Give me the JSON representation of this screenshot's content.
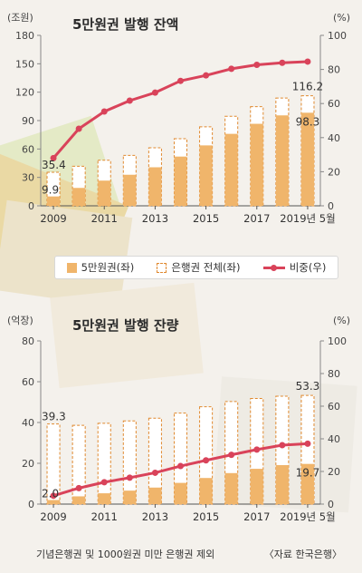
{
  "colors": {
    "bar_5man": "#f0b56b",
    "bar_total_border": "#e0892f",
    "line_ratio": "#d9435a"
  },
  "legend": {
    "item1": "5만원권(좌)",
    "item2": "은행권 전체(좌)",
    "item3": "비중(우)"
  },
  "footnote": "기념은행권 및 1000원권 미만 은행권 제외",
  "source": "〈자료 한국은행〉",
  "chart_data": [
    {
      "type": "bar",
      "title": "5만원권 발행 잔액",
      "left_unit": "(조원)",
      "right_unit": "(%)",
      "x_tick_labels": [
        "2009",
        "2011",
        "2013",
        "2015",
        "2017",
        "2019년 5월"
      ],
      "categories": [
        "2009",
        "2010",
        "2011",
        "2012",
        "2013",
        "2014",
        "2015",
        "2016",
        "2017",
        "2018",
        "2019년 5월"
      ],
      "yticks_left": [
        "0",
        "30",
        "60",
        "90",
        "120",
        "150",
        "180"
      ],
      "yticks_right": [
        "0",
        "20",
        "40",
        "60",
        "80",
        "100"
      ],
      "ylim_left": [
        0,
        180
      ],
      "ylim_right": [
        0,
        100
      ],
      "series": [
        {
          "name": "5만원권(좌)",
          "axis": "left",
          "style": "solid",
          "values": [
            9.9,
            18.9,
            26.6,
            32.8,
            40.7,
            52.0,
            63.8,
            76.0,
            86.6,
            95.5,
            98.3
          ]
        },
        {
          "name": "은행권 전체(좌)",
          "axis": "left",
          "style": "dashed",
          "values": [
            35.4,
            41.8,
            48.1,
            53.2,
            61.3,
            70.9,
            83.4,
            94.5,
            104.7,
            113.8,
            116.2
          ]
        },
        {
          "name": "비중(우)",
          "axis": "right",
          "style": "line",
          "values": [
            28.0,
            45.2,
            55.3,
            61.7,
            66.4,
            73.3,
            76.5,
            80.4,
            82.7,
            83.9,
            84.6
          ]
        }
      ],
      "data_labels": {
        "total_first": "35.4",
        "total_last": "116.2",
        "bar_first": "9.9",
        "bar_last": "98.3"
      }
    },
    {
      "type": "bar",
      "title": "5만원권 발행 잔량",
      "left_unit": "(억장)",
      "right_unit": "(%)",
      "x_tick_labels": [
        "2009",
        "2011",
        "2013",
        "2015",
        "2017",
        "2019년 5월"
      ],
      "categories": [
        "2009",
        "2010",
        "2011",
        "2012",
        "2013",
        "2014",
        "2015",
        "2016",
        "2017",
        "2018",
        "2019년 5월"
      ],
      "yticks_left": [
        "0",
        "20",
        "40",
        "60",
        "80"
      ],
      "yticks_right": [
        "0",
        "20",
        "40",
        "60",
        "80",
        "100"
      ],
      "ylim_left": [
        0,
        80
      ],
      "ylim_right": [
        0,
        100
      ],
      "series": [
        {
          "name": "5만원권(좌)",
          "axis": "left",
          "style": "solid",
          "values": [
            2.0,
            3.8,
            5.3,
            6.6,
            8.1,
            10.4,
            12.8,
            15.2,
            17.3,
            19.1,
            19.7
          ]
        },
        {
          "name": "은행권 전체(좌)",
          "axis": "left",
          "style": "dashed",
          "values": [
            39.3,
            38.6,
            39.6,
            40.8,
            42.1,
            44.6,
            47.7,
            50.3,
            51.8,
            52.9,
            53.3
          ]
        },
        {
          "name": "비중(우)",
          "axis": "right",
          "style": "line",
          "values": [
            5.1,
            9.8,
            13.4,
            16.2,
            19.2,
            23.3,
            26.8,
            30.2,
            33.4,
            36.1,
            37.0
          ]
        }
      ],
      "data_labels": {
        "total_first": "39.3",
        "total_last": "53.3",
        "bar_first": "2.0",
        "bar_last": "19.7"
      }
    }
  ]
}
